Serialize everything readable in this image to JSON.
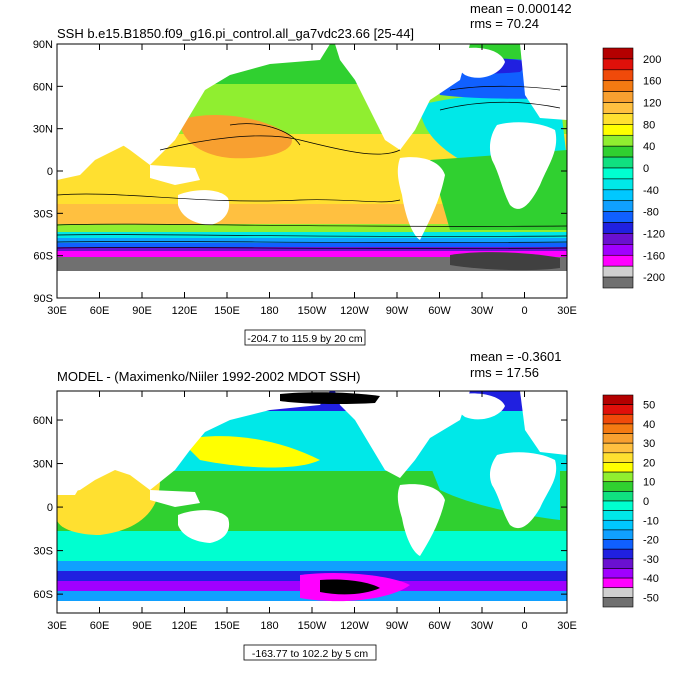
{
  "chart_data": [
    {
      "type": "heatmap",
      "title": "SSH b.e15.B1850.f09_g16.pi_control.all_ga7vdc23.66 [25-44]",
      "stats": [
        "mean = 0.000142",
        "rms = 70.24"
      ],
      "lat_ticks": [
        "90N",
        "60N",
        "30N",
        "0",
        "30S",
        "60S",
        "90S"
      ],
      "lat_values": [
        90,
        60,
        30,
        0,
        -30,
        -60,
        -90
      ],
      "lat_range": [
        -90,
        90
      ],
      "lon_ticks": [
        "30E",
        "60E",
        "90E",
        "120E",
        "150E",
        "180",
        "150W",
        "120W",
        "90W",
        "60W",
        "30W",
        "0",
        "30E"
      ],
      "lon_range": [
        30,
        390
      ],
      "range_label": "-204.7 to 115.9 by 20 cm",
      "colorbar_labels": [
        "200",
        "160",
        "120",
        "80",
        "40",
        "0",
        "-40",
        "-80",
        "-120",
        "-160",
        "-200"
      ],
      "colorbar_colors": [
        "#b40000",
        "#e0100a",
        "#f04a0a",
        "#f47a12",
        "#f8a030",
        "#ffc040",
        "#ffe030",
        "#ffff00",
        "#90ee30",
        "#30d030",
        "#10e080",
        "#00ffd0",
        "#00e8e8",
        "#00c8ff",
        "#10a0ff",
        "#1060ff",
        "#2020e0",
        "#6a10d0",
        "#a000ff",
        "#ff00ff",
        "#cfcfcf",
        "#707070"
      ]
    },
    {
      "type": "heatmap",
      "title": "MODEL - (Maximenko/Niiler 1992-2002 MDOT SSH)",
      "stats": [
        "mean = -0.3601",
        "rms = 17.56"
      ],
      "lat_ticks": [
        "60N",
        "30N",
        "0",
        "30S",
        "60S"
      ],
      "lat_values": [
        60,
        30,
        0,
        -30,
        -60
      ],
      "lat_range": [
        -73,
        80
      ],
      "lon_ticks": [
        "30E",
        "60E",
        "90E",
        "120E",
        "150E",
        "180",
        "150W",
        "120W",
        "90W",
        "60W",
        "30W",
        "0",
        "30E"
      ],
      "lon_range": [
        30,
        390
      ],
      "range_label": "-163.77 to 102.2 by 5 cm",
      "colorbar_labels": [
        "50",
        "40",
        "30",
        "20",
        "10",
        "0",
        "-10",
        "-20",
        "-30",
        "-40",
        "-50"
      ],
      "colorbar_colors": [
        "#b40000",
        "#e0100a",
        "#f04a0a",
        "#f47a12",
        "#f8a030",
        "#ffc040",
        "#ffe030",
        "#ffff00",
        "#90ee30",
        "#30d030",
        "#10e080",
        "#00ffd0",
        "#00e8e8",
        "#00c8ff",
        "#10a0ff",
        "#1060ff",
        "#2020e0",
        "#6a10d0",
        "#a000ff",
        "#ff00ff",
        "#cfcfcf",
        "#707070"
      ]
    }
  ]
}
